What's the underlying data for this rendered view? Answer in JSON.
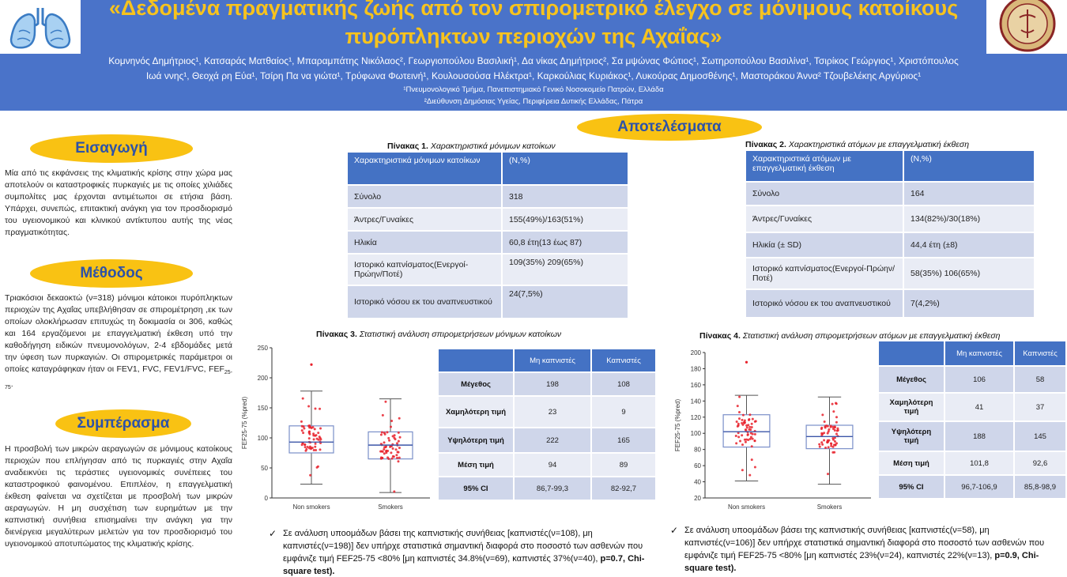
{
  "header": {
    "title_line1": "«Δεδομένα πραγματικής ζωής από τον σπιρομετρικό έλεγχο σε μόνιμους κατοίκους",
    "title_line2": "πυρόπληκτων περιοχών της Αχαΐας»",
    "authors_line1": "Κομνηνός Δημήτριος¹, Κατσαράς Ματθαίος¹, Μπαραμπάτης Νικόλαος², Γεωργιοπούλου Βασιλική¹, Δα νίκας Δημήτριος², Σα μψώνας Φώτιος¹, Σωτηροπούλου Βασιλίνα¹, Τσιρίκος Γεώργιος¹, Χριστόπουλος",
    "authors_line2": "Ιωά ννης¹, Θεοχά ρη Εύα¹, Τσίρη Πα να γιώτα¹, Τρύφωνα Φωτεινή¹, Κουλουσούσα Ηλέκτρα¹, Καρκούλιας Κυριάκος¹, Λυκούρας Δημοσθένης¹, Μαστοράκου Άννα² Τζουβελέκης Αργύριος¹",
    "affiliation1": "¹Πνευμονολογικό Τμήμα, Πανεπιστημιακό Γενικό Νοσοκομείο Πατρών, Ελλάδα",
    "affiliation2": "²Διεύθυνση Δημόσιας Υγείας, Περιφέρεια Δυτικής Ελλάδας, Πάτρα"
  },
  "colors": {
    "header_bg": "#4a73c9",
    "title": "#f7c31d",
    "pill_bg": "#f9c213",
    "pill_text": "#2d52a8",
    "table_header": "#4472c4",
    "points": "#e8212b"
  },
  "intro": {
    "heading": "Εισαγωγή",
    "text": "Μία από τις εκφάνσεις της κλιματικής κρίσης στην χώρα μας αποτελούν οι καταστροφικές πυρκαγιές με τις οποίες χιλιάδες συμπολίτες μας έρχονται αντιμέτωποι σε ετήσια βάση. Υπάρχει, συνεπώς, επιτακτική ανάγκη για τον προσδιορισμό του υγειονομικού και κλινικού αντίκτυπου αυτής της νέας πραγματικότητας."
  },
  "methods": {
    "heading": "Μέθοδος",
    "text": "Τριακόσιοι δεκαοκτώ (ν=318) μόνιμοι κάτοικοι πυρόπληκτων περιοχών της Αχαΐας υπεβλήθησαν σε σπιρομέτρηση ,εκ των οποίων ολοκλήρωσαν επιτυχώς τη δοκιμασία οι 306, καθώς και 164 εργαζόμενοι με επαγγελματική έκθεση υπό την καθοδήγηση ειδικών πνευμονολόγων, 2-4 εβδομάδες μετά την ύφεση των πυρκαγιών. Οι σπιρομετρικές παράμετροι οι οποίες καταγράφηκαν ήταν οι FEV1, FVC, FEV1/FVC, FEF",
    "sub": "25-75",
    "end": "."
  },
  "conclusion": {
    "heading": "Συμπέρασμα",
    "text": "Η προσβολή των μικρών αεραγωγών σε μόνιμους κατοίκους περιοχών που επλήγησαν από τις πυρκαγιές στην Αχαΐα αναδεικνύει τις τεράστιες υγειονομικές συνέπειες του καταστροφικού φαινομένου. Επιπλέον, η επαγγελματική έκθεση φαίνεται να σχετίζεται με προσβολή των μικρών αεραγωγών. Η μη συσχέτιση των ευρημάτων με την καπνιστική συνήθεια επισημαίνει την ανάγκη για την διενέργεια μεγαλύτερων μελετών για τον προσδιορισμό του υγειονομικού αποτυπώματος της κλιματικής κρίσης."
  },
  "results": {
    "heading": "Αποτελέσματα"
  },
  "table1": {
    "caption_label": "Πίνακας 1.",
    "caption_text": "Χαρακτηριστικά μόνιμων κατοίκων",
    "headers": [
      "Χαρακτηριστικά μόνιμων κατοίκων",
      "(Ν,%)"
    ],
    "rows": [
      [
        "Σύνολο",
        "318"
      ],
      [
        "Άντρες/Γυναίκες",
        "155(49%)/163(51%)"
      ],
      [
        "Ηλικία",
        "60,8 έτη(13 έως 87)"
      ],
      [
        "Ιστορικό καπνίσματος(Ενεργοί-Πρώην/Ποτέ)",
        "109(35%) 209(65%)"
      ],
      [
        "Ιστορικό νόσου εκ του αναπνευστικού",
        "24(7,5%)"
      ]
    ]
  },
  "table2": {
    "caption_label": "Πίνακας 2.",
    "caption_text": "Χαρακτηριστικά ατόμων με επαγγελματική έκθεση",
    "headers": [
      "Χαρακτηριστικά ατόμων με επαγγελματική έκθεση",
      "(Ν,%)"
    ],
    "rows": [
      [
        "Σύνολο",
        "164"
      ],
      [
        "Άντρες/Γυναίκες",
        "134(82%)/30(18%)"
      ],
      [
        "Ηλικία (± SD)",
        "44,4 έτη (±8)"
      ],
      [
        "Ιστορικό καπνίσματος(Ενεργοί-Πρώην/Ποτέ)",
        "58(35%) 106(65%)"
      ],
      [
        "Ιστορικό νόσου εκ του αναπνευστικού",
        "7(4,2%)"
      ]
    ]
  },
  "table3": {
    "caption_label": "Πίνακας 3.",
    "caption_text": "Στατιστική ανάλυση σπιρομετρήσεων μόνιμων κατοίκων",
    "headers": [
      "",
      "Μη καπνιστές",
      "Καπνιστές"
    ],
    "rows": [
      [
        "Μέγεθος",
        "198",
        "108"
      ],
      [
        "Χαμηλότερη τιμή",
        "23",
        "9"
      ],
      [
        "Υψηλότερη τιμή",
        "222",
        "165"
      ],
      [
        "Μέση τιμή",
        "94",
        "89"
      ],
      [
        "95% CI",
        "86,7-99,3",
        "82-92,7"
      ]
    ]
  },
  "table4": {
    "caption_label": "Πίνακας 4.",
    "caption_text": "Στατιστική ανάλυση σπιρομετρήσεων ατόμων με επαγγελματική έκθεση",
    "headers": [
      "",
      "Μη καπνιστές",
      "Καπνιστές"
    ],
    "rows": [
      [
        "Μέγεθος",
        "106",
        "58"
      ],
      [
        "Χαμηλότερη τιμή",
        "41",
        "37"
      ],
      [
        "Υψηλότερη τιμή",
        "188",
        "145"
      ],
      [
        "Μέση τιμή",
        "101,8",
        "92,6"
      ],
      [
        "95% CI",
        "96,7-106,9",
        "85,8-98,9"
      ]
    ]
  },
  "bullet1": {
    "text": "Σε ανάλυση υποομάδων βάσει της καπνιστικής συνήθειας [καπνιστές(ν=108), μη καπνιστές(ν=198)] δεν υπήρχε στατιστικά σημαντική διαφορά στο ποσοστό των ασθενών που εμφάνιζε τιμή FEF25-75 <80% [μη καπνιστές 34.8%(ν=69), καπνιστές 37%(ν=40), ",
    "bold": "p=0.7, Chi-square test)."
  },
  "bullet2": {
    "text": "Σε ανάλυση υποομάδων βάσει της καπνιστικής συνήθειας [καπνιστές(ν=58), μη καπνιστές(ν=106)] δεν υπήρχε στατιστικά σημαντική διαφορά στο ποσοστό των ασθενών που εμφάνιζε τιμή FEF25-75 <80% [μη καπνιστές 23%(ν=24), καπνιστές 22%(ν=13), ",
    "bold": "p=0.9, Chi-square test)."
  },
  "chart_data": [
    {
      "type": "box",
      "ylabel": "FEF25-75 (%pred)",
      "ylim": [
        0,
        250
      ],
      "yticks": [
        0,
        50,
        100,
        150,
        200,
        250
      ],
      "categories": [
        "Non smokers",
        "Smokers"
      ],
      "boxes": [
        {
          "min": 23,
          "q1": 75,
          "median": 93,
          "q3": 120,
          "max": 178,
          "outliers": [
            222
          ]
        },
        {
          "min": 9,
          "q1": 65,
          "median": 88,
          "q3": 110,
          "max": 165,
          "outliers": []
        }
      ]
    },
    {
      "type": "box",
      "ylabel": "FEF25-75 (%pred)",
      "ylim": [
        20,
        200
      ],
      "yticks": [
        20,
        40,
        60,
        80,
        100,
        120,
        140,
        160,
        180,
        200
      ],
      "categories": [
        "Non smokers",
        "Smokers"
      ],
      "boxes": [
        {
          "min": 41,
          "q1": 83,
          "median": 102,
          "q3": 123,
          "max": 147,
          "outliers": [
            188
          ]
        },
        {
          "min": 37,
          "q1": 81,
          "median": 96,
          "q3": 110,
          "max": 145,
          "outliers": []
        }
      ]
    }
  ]
}
